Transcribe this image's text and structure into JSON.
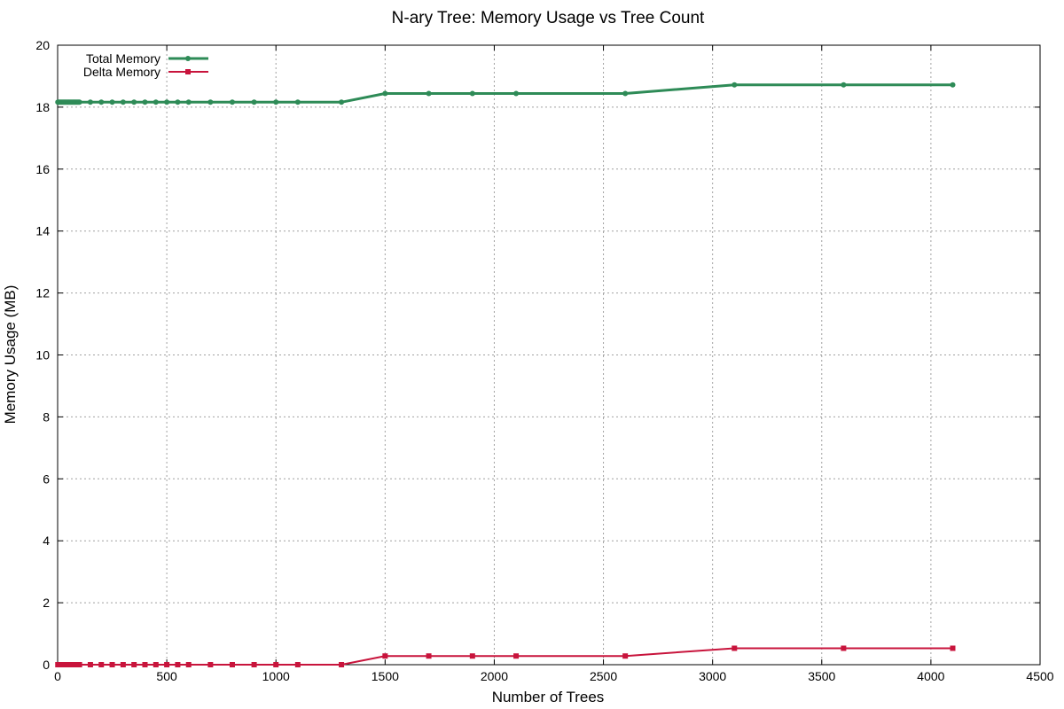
{
  "chart_data": {
    "type": "line",
    "title": "N-ary Tree: Memory Usage vs Tree Count",
    "xlabel": "Number of Trees",
    "ylabel": "Memory Usage (MB)",
    "xlim": [
      0,
      4500
    ],
    "ylim": [
      0,
      20
    ],
    "xticks": [
      0,
      500,
      1000,
      1500,
      2000,
      2500,
      3000,
      3500,
      4000,
      4500
    ],
    "yticks": [
      0,
      2,
      4,
      6,
      8,
      10,
      12,
      14,
      16,
      18,
      20
    ],
    "grid": true,
    "legend_position": "top-left",
    "series": [
      {
        "name": "Total Memory",
        "color": "#2e8b57",
        "marker": "circle",
        "points": [
          [
            1,
            18.16
          ],
          [
            5,
            18.16
          ],
          [
            10,
            18.16
          ],
          [
            15,
            18.16
          ],
          [
            20,
            18.16
          ],
          [
            25,
            18.16
          ],
          [
            30,
            18.16
          ],
          [
            35,
            18.16
          ],
          [
            40,
            18.16
          ],
          [
            45,
            18.16
          ],
          [
            50,
            18.16
          ],
          [
            55,
            18.16
          ],
          [
            60,
            18.16
          ],
          [
            65,
            18.16
          ],
          [
            70,
            18.16
          ],
          [
            75,
            18.16
          ],
          [
            80,
            18.16
          ],
          [
            85,
            18.16
          ],
          [
            90,
            18.16
          ],
          [
            95,
            18.16
          ],
          [
            100,
            18.16
          ],
          [
            150,
            18.16
          ],
          [
            200,
            18.16
          ],
          [
            250,
            18.16
          ],
          [
            300,
            18.16
          ],
          [
            350,
            18.16
          ],
          [
            400,
            18.16
          ],
          [
            450,
            18.16
          ],
          [
            500,
            18.16
          ],
          [
            550,
            18.16
          ],
          [
            600,
            18.16
          ],
          [
            700,
            18.16
          ],
          [
            800,
            18.16
          ],
          [
            900,
            18.16
          ],
          [
            1000,
            18.16
          ],
          [
            1100,
            18.16
          ],
          [
            1300,
            18.16
          ],
          [
            1500,
            18.44
          ],
          [
            1700,
            18.44
          ],
          [
            1900,
            18.44
          ],
          [
            2100,
            18.44
          ],
          [
            2600,
            18.44
          ],
          [
            3100,
            18.72
          ],
          [
            3600,
            18.72
          ],
          [
            4100,
            18.72
          ]
        ]
      },
      {
        "name": "Delta Memory",
        "color": "#c8143c",
        "marker": "square",
        "points": [
          [
            1,
            0
          ],
          [
            5,
            0
          ],
          [
            10,
            0
          ],
          [
            15,
            0
          ],
          [
            20,
            0
          ],
          [
            25,
            0
          ],
          [
            30,
            0
          ],
          [
            35,
            0
          ],
          [
            40,
            0
          ],
          [
            45,
            0
          ],
          [
            50,
            0
          ],
          [
            55,
            0
          ],
          [
            60,
            0
          ],
          [
            65,
            0
          ],
          [
            70,
            0
          ],
          [
            75,
            0
          ],
          [
            80,
            0
          ],
          [
            85,
            0
          ],
          [
            90,
            0
          ],
          [
            95,
            0
          ],
          [
            100,
            0
          ],
          [
            150,
            0
          ],
          [
            200,
            0
          ],
          [
            250,
            0
          ],
          [
            300,
            0
          ],
          [
            350,
            0
          ],
          [
            400,
            0
          ],
          [
            450,
            0
          ],
          [
            500,
            0
          ],
          [
            550,
            0
          ],
          [
            600,
            0
          ],
          [
            700,
            0
          ],
          [
            800,
            0
          ],
          [
            900,
            0
          ],
          [
            1000,
            0
          ],
          [
            1100,
            0
          ],
          [
            1300,
            0
          ],
          [
            1500,
            0.28
          ],
          [
            1700,
            0.28
          ],
          [
            1900,
            0.28
          ],
          [
            2100,
            0.28
          ],
          [
            2600,
            0.28
          ],
          [
            3100,
            0.53
          ],
          [
            3600,
            0.53
          ],
          [
            4100,
            0.53
          ]
        ]
      }
    ]
  }
}
